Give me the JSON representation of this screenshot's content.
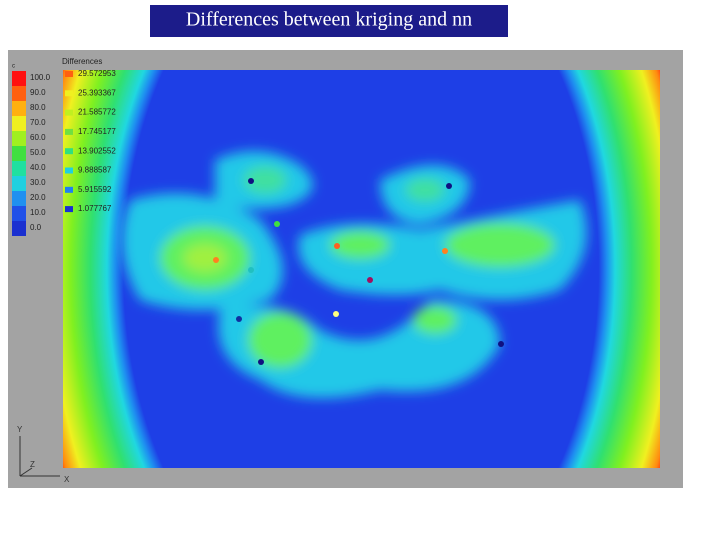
{
  "title": "Differences between kriging and nn",
  "color_legend": {
    "heading": "c",
    "labels": [
      "100.0",
      "90.0",
      "80.0",
      "70.0",
      "60.0",
      "50.0",
      "40.0",
      "30.0",
      "20.0",
      "10.0",
      "0.0"
    ]
  },
  "value_legend": {
    "heading": "Differences",
    "labels": [
      "29.572953",
      "25.393367",
      "21.585772",
      "17.745177",
      "13.902552",
      "9.888587",
      "5.915592",
      "1.077767"
    ]
  },
  "axes": {
    "y": "Y",
    "z": "Z",
    "x": "X"
  }
}
